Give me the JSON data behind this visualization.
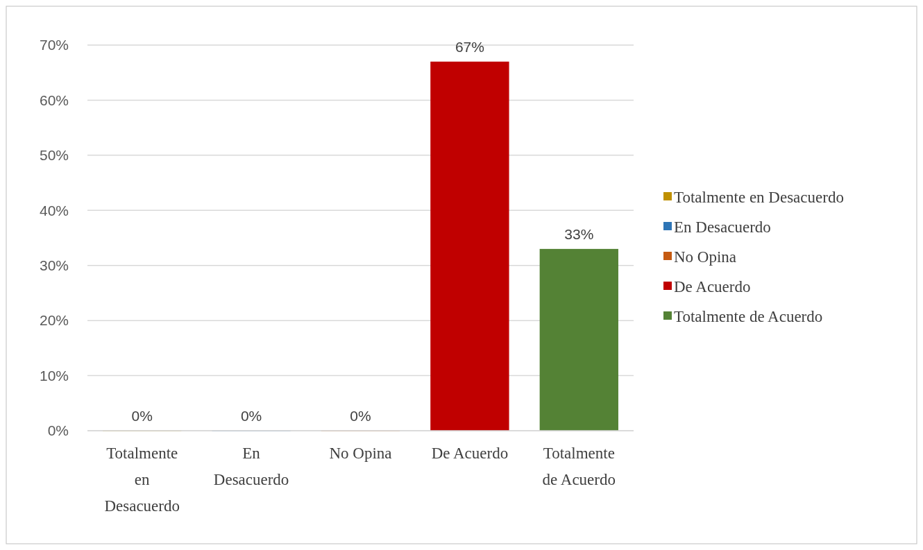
{
  "chart_data": {
    "type": "bar",
    "categories": [
      "Totalmente en Desacuerdo",
      "En Desacuerdo",
      "No Opina",
      "De Acuerdo",
      "Totalmente de Acuerdo"
    ],
    "series": [
      {
        "name": "Totalmente en Desacuerdo",
        "color": "#bf9000",
        "values": [
          0,
          null,
          null,
          null,
          null
        ],
        "value_labels": [
          "0%",
          null,
          null,
          null,
          null
        ]
      },
      {
        "name": "En Desacuerdo",
        "color": "#2e75b6",
        "values": [
          null,
          0,
          null,
          null,
          null
        ],
        "value_labels": [
          null,
          "0%",
          null,
          null,
          null
        ]
      },
      {
        "name": "No Opina",
        "color": "#c55a11",
        "values": [
          null,
          null,
          0,
          null,
          null
        ],
        "value_labels": [
          null,
          null,
          "0%",
          null,
          null
        ]
      },
      {
        "name": "De Acuerdo",
        "color": "#c00000",
        "values": [
          null,
          null,
          null,
          67,
          null
        ],
        "value_labels": [
          null,
          null,
          null,
          "67%",
          null
        ]
      },
      {
        "name": "Totalmente de Acuerdo",
        "color": "#548235",
        "values": [
          null,
          null,
          null,
          null,
          33
        ],
        "value_labels": [
          null,
          null,
          null,
          null,
          "33%"
        ]
      }
    ],
    "ylim": [
      0,
      70
    ],
    "yticks": [
      {
        "value": 0,
        "label": "0%"
      },
      {
        "value": 10,
        "label": "10%"
      },
      {
        "value": 20,
        "label": "20%"
      },
      {
        "value": 30,
        "label": "30%"
      },
      {
        "value": 40,
        "label": "40%"
      },
      {
        "value": 50,
        "label": "50%"
      },
      {
        "value": 60,
        "label": "60%"
      },
      {
        "value": 70,
        "label": "70%"
      }
    ],
    "grid": "y",
    "legend": "right"
  }
}
